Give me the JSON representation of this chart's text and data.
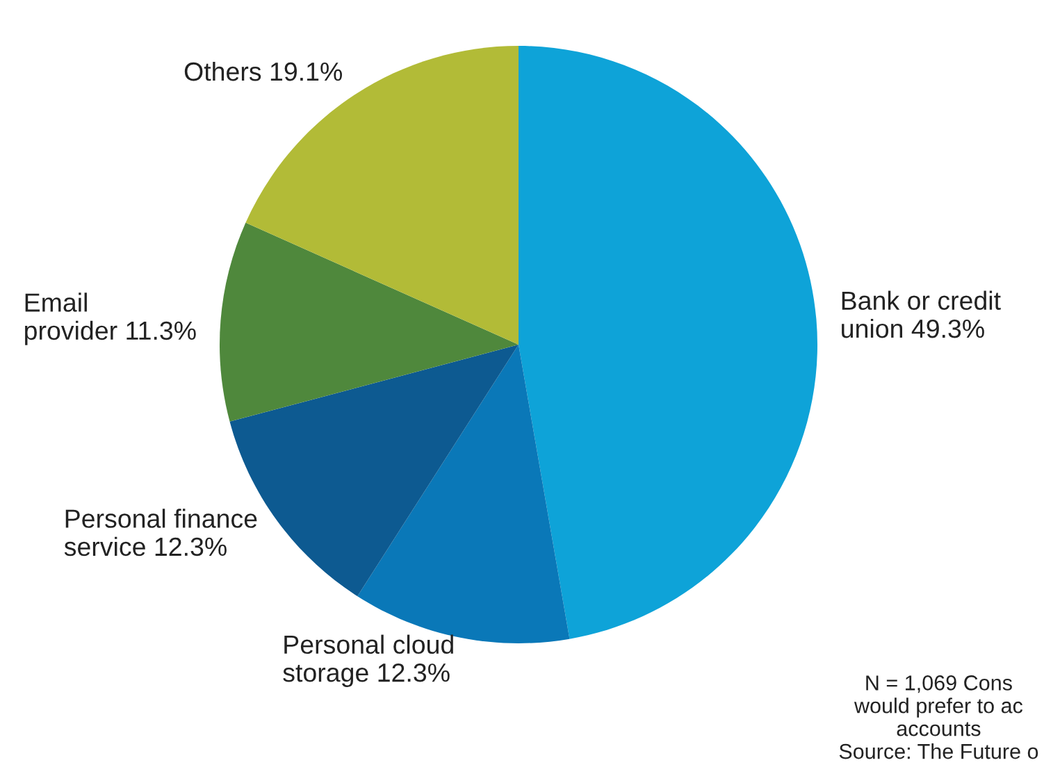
{
  "chart_data": {
    "type": "pie",
    "categories": [
      "Bank or credit\nunion",
      "Personal cloud\nstorage",
      "Personal finance\nservice",
      "Email\nprovider",
      "Others"
    ],
    "values": [
      49.3,
      12.3,
      12.3,
      11.3,
      19.1
    ],
    "value_labels": [
      "49.3%",
      "12.3%",
      "12.3%",
      "11.3%",
      "19.1%"
    ],
    "colors": [
      "#0ea3d8",
      "#0a78b8",
      "#0d5a91",
      "#4f883c",
      "#b2bb37"
    ],
    "annotations": [
      "N = 1,069 Cons\nwould prefer to ac\naccounts\nSource: The Future o"
    ]
  }
}
